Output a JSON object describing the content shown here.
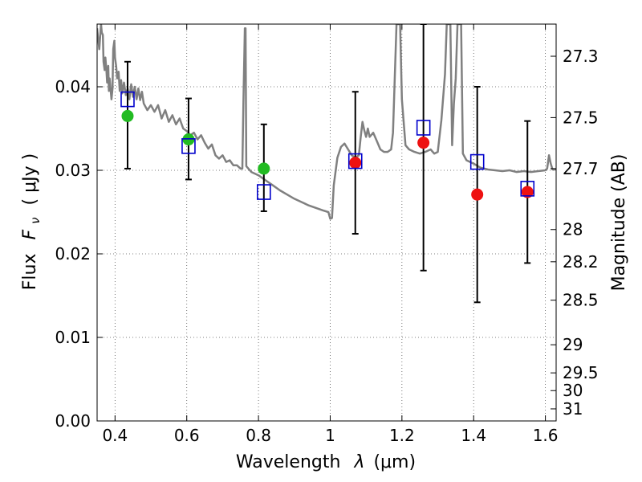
{
  "chart_data": {
    "type": "scatter",
    "title": "",
    "xlabel_text": "Wavelength",
    "xlabel_symbol": "λ",
    "xlabel_unit": "(μm)",
    "ylabel_text": "Flux",
    "ylabel_symbol": "F",
    "ylabel_subscript": "ν",
    "ylabel_unit": "( μJy )",
    "y2label": "Magnitude (AB)",
    "xlim": [
      0.35,
      1.63
    ],
    "ylim": [
      0.0,
      0.0475
    ],
    "grid": true,
    "x_ticks": [
      0.4,
      0.6,
      0.8,
      1.0,
      1.2,
      1.4,
      1.6
    ],
    "x_tick_labels": [
      "0.4",
      "0.6",
      "0.8",
      "1",
      "1.2",
      "1.4",
      "1.6"
    ],
    "y_ticks": [
      0.0,
      0.01,
      0.02,
      0.03,
      0.04
    ],
    "y_tick_labels": [
      "0.00",
      "0.01",
      "0.02",
      "0.03",
      "0.04"
    ],
    "mag_ticks": [
      "27.3",
      "27.5",
      "27.7",
      "28",
      "28.2",
      "28.5",
      "29",
      "29.5",
      "30",
      "31"
    ],
    "colors": {
      "model": "#808080",
      "model_points": "#0000cc",
      "hst_points": "#22bb22",
      "jwst_points": "#ee1111",
      "errorbar": "#000000"
    },
    "model_spectrum": [
      [
        0.35,
        0.047
      ],
      [
        0.356,
        0.0445
      ],
      [
        0.361,
        0.0475
      ],
      [
        0.363,
        0.0465
      ],
      [
        0.366,
        0.0462
      ],
      [
        0.368,
        0.043
      ],
      [
        0.371,
        0.042
      ],
      [
        0.373,
        0.0435
      ],
      [
        0.376,
        0.042
      ],
      [
        0.378,
        0.0405
      ],
      [
        0.381,
        0.0425
      ],
      [
        0.383,
        0.0395
      ],
      [
        0.385,
        0.041
      ],
      [
        0.388,
        0.0395
      ],
      [
        0.39,
        0.0385
      ],
      [
        0.393,
        0.0398
      ],
      [
        0.395,
        0.0445
      ],
      [
        0.398,
        0.0455
      ],
      [
        0.4,
        0.0435
      ],
      [
        0.403,
        0.0425
      ],
      [
        0.406,
        0.041
      ],
      [
        0.41,
        0.0418
      ],
      [
        0.413,
        0.0395
      ],
      [
        0.417,
        0.0408
      ],
      [
        0.42,
        0.0392
      ],
      [
        0.425,
        0.0405
      ],
      [
        0.43,
        0.039
      ],
      [
        0.435,
        0.0398
      ],
      [
        0.44,
        0.0385
      ],
      [
        0.445,
        0.0403
      ],
      [
        0.45,
        0.0388
      ],
      [
        0.455,
        0.04
      ],
      [
        0.46,
        0.0385
      ],
      [
        0.465,
        0.0398
      ],
      [
        0.47,
        0.0384
      ],
      [
        0.475,
        0.0394
      ],
      [
        0.48,
        0.038
      ],
      [
        0.49,
        0.0372
      ],
      [
        0.5,
        0.0378
      ],
      [
        0.51,
        0.037
      ],
      [
        0.52,
        0.0378
      ],
      [
        0.53,
        0.0362
      ],
      [
        0.54,
        0.0372
      ],
      [
        0.55,
        0.0358
      ],
      [
        0.56,
        0.0366
      ],
      [
        0.57,
        0.0355
      ],
      [
        0.58,
        0.0362
      ],
      [
        0.59,
        0.035
      ],
      [
        0.6,
        0.0347
      ],
      [
        0.61,
        0.0342
      ],
      [
        0.62,
        0.0345
      ],
      [
        0.63,
        0.0337
      ],
      [
        0.64,
        0.0342
      ],
      [
        0.65,
        0.0333
      ],
      [
        0.66,
        0.0326
      ],
      [
        0.67,
        0.0331
      ],
      [
        0.68,
        0.0318
      ],
      [
        0.69,
        0.0314
      ],
      [
        0.7,
        0.0318
      ],
      [
        0.71,
        0.031
      ],
      [
        0.72,
        0.0312
      ],
      [
        0.73,
        0.0306
      ],
      [
        0.74,
        0.0306
      ],
      [
        0.75,
        0.0302
      ],
      [
        0.755,
        0.0302
      ],
      [
        0.758,
        0.038
      ],
      [
        0.762,
        0.047
      ],
      [
        0.764,
        0.047
      ],
      [
        0.766,
        0.0305
      ],
      [
        0.77,
        0.0303
      ],
      [
        0.78,
        0.0298
      ],
      [
        0.8,
        0.0294
      ],
      [
        0.82,
        0.0288
      ],
      [
        0.84,
        0.0282
      ],
      [
        0.86,
        0.0276
      ],
      [
        0.88,
        0.0271
      ],
      [
        0.9,
        0.0266
      ],
      [
        0.92,
        0.0262
      ],
      [
        0.94,
        0.0258
      ],
      [
        0.96,
        0.0255
      ],
      [
        0.98,
        0.0252
      ],
      [
        0.995,
        0.025
      ],
      [
        1.0,
        0.0242
      ],
      [
        1.005,
        0.0243
      ],
      [
        1.01,
        0.0282
      ],
      [
        1.02,
        0.0315
      ],
      [
        1.03,
        0.0328
      ],
      [
        1.04,
        0.0332
      ],
      [
        1.05,
        0.0325
      ],
      [
        1.06,
        0.0318
      ],
      [
        1.07,
        0.0315
      ],
      [
        1.08,
        0.0318
      ],
      [
        1.085,
        0.034
      ],
      [
        1.09,
        0.0358
      ],
      [
        1.095,
        0.0348
      ],
      [
        1.1,
        0.034
      ],
      [
        1.105,
        0.035
      ],
      [
        1.11,
        0.034
      ],
      [
        1.12,
        0.0345
      ],
      [
        1.13,
        0.0335
      ],
      [
        1.14,
        0.0325
      ],
      [
        1.15,
        0.0322
      ],
      [
        1.16,
        0.0322
      ],
      [
        1.17,
        0.0325
      ],
      [
        1.175,
        0.0345
      ],
      [
        1.18,
        0.041
      ],
      [
        1.185,
        0.0475
      ],
      [
        1.19,
        0.0475
      ],
      [
        1.195,
        0.0475
      ],
      [
        1.2,
        0.0385
      ],
      [
        1.21,
        0.033
      ],
      [
        1.22,
        0.0325
      ],
      [
        1.235,
        0.0322
      ],
      [
        1.25,
        0.032
      ],
      [
        1.265,
        0.0322
      ],
      [
        1.28,
        0.0325
      ],
      [
        1.29,
        0.032
      ],
      [
        1.3,
        0.0322
      ],
      [
        1.31,
        0.036
      ],
      [
        1.32,
        0.0415
      ],
      [
        1.325,
        0.0475
      ],
      [
        1.33,
        0.0475
      ],
      [
        1.335,
        0.0475
      ],
      [
        1.34,
        0.033
      ],
      [
        1.345,
        0.038
      ],
      [
        1.35,
        0.041
      ],
      [
        1.355,
        0.0475
      ],
      [
        1.36,
        0.0475
      ],
      [
        1.365,
        0.0475
      ],
      [
        1.37,
        0.032
      ],
      [
        1.38,
        0.0312
      ],
      [
        1.4,
        0.0308
      ],
      [
        1.42,
        0.0303
      ],
      [
        1.44,
        0.0301
      ],
      [
        1.46,
        0.03
      ],
      [
        1.48,
        0.0299
      ],
      [
        1.5,
        0.03
      ],
      [
        1.52,
        0.0298
      ],
      [
        1.54,
        0.0299
      ],
      [
        1.56,
        0.0298
      ],
      [
        1.58,
        0.0299
      ],
      [
        1.6,
        0.03
      ],
      [
        1.605,
        0.0302
      ],
      [
        1.61,
        0.0318
      ],
      [
        1.615,
        0.0308
      ],
      [
        1.62,
        0.0301
      ],
      [
        1.63,
        0.0301
      ]
    ],
    "model_points": [
      {
        "x": 0.435,
        "y": 0.0385
      },
      {
        "x": 0.605,
        "y": 0.0329
      },
      {
        "x": 0.815,
        "y": 0.0274
      },
      {
        "x": 1.07,
        "y": 0.0311
      },
      {
        "x": 1.26,
        "y": 0.0351
      },
      {
        "x": 1.41,
        "y": 0.031
      },
      {
        "x": 1.55,
        "y": 0.0278
      }
    ],
    "hst_points": [
      {
        "x": 0.435,
        "y": 0.0365,
        "err": 0.0
      },
      {
        "x": 0.605,
        "y": 0.0337,
        "err": 0.0
      },
      {
        "x": 0.815,
        "y": 0.0302,
        "err": 0.0
      }
    ],
    "jwst_points": [
      {
        "x": 1.07,
        "y": 0.0309
      },
      {
        "x": 1.26,
        "y": 0.0333
      },
      {
        "x": 1.41,
        "y": 0.0271
      },
      {
        "x": 1.55,
        "y": 0.0274
      }
    ],
    "errorbars": [
      {
        "x": 0.435,
        "low": 0.0302,
        "high": 0.043
      },
      {
        "x": 0.605,
        "low": 0.0289,
        "high": 0.0386
      },
      {
        "x": 0.815,
        "low": 0.0251,
        "high": 0.0355
      },
      {
        "x": 1.07,
        "low": 0.0224,
        "high": 0.0394
      },
      {
        "x": 1.26,
        "low": 0.018,
        "high": 0.0475
      },
      {
        "x": 1.41,
        "low": 0.0142,
        "high": 0.04
      },
      {
        "x": 1.55,
        "low": 0.0189,
        "high": 0.0359
      }
    ]
  }
}
